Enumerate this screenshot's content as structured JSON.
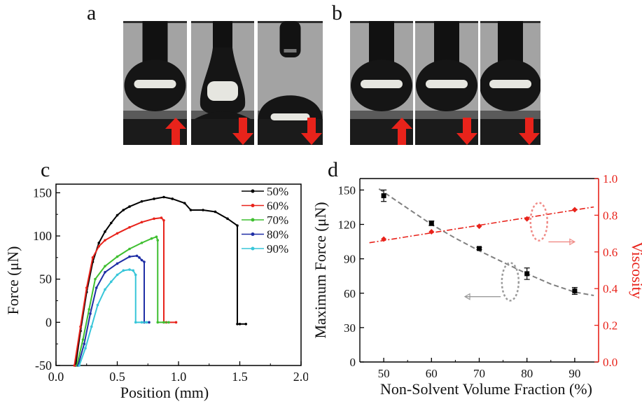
{
  "panels": {
    "a": "a",
    "b": "b",
    "c": "c",
    "d": "d"
  },
  "colors": {
    "arrow": "#e8231b",
    "s50": "#000000",
    "s60": "#e8231b",
    "s70": "#3fbf30",
    "s80": "#1f2ea5",
    "s90": "#38c6d9",
    "force_fit": "#808080",
    "viscosity": "#e8231b"
  },
  "photos": {
    "a": [
      {
        "state": "approach",
        "arrow": "up"
      },
      {
        "state": "stretched-neck",
        "arrow": "down"
      },
      {
        "state": "separated",
        "arrow": "down"
      }
    ],
    "b": [
      {
        "state": "approach",
        "arrow": "up"
      },
      {
        "state": "approach",
        "arrow": "down"
      },
      {
        "state": "approach",
        "arrow": "down"
      }
    ]
  },
  "chart_data": [
    {
      "id": "c",
      "type": "line",
      "xlabel": "Position (mm)",
      "ylabel": "Force (μN)",
      "xlim": [
        0.0,
        2.0
      ],
      "ylim": [
        -50,
        160
      ],
      "xticks": [
        "0.0",
        "0.5",
        "1.0",
        "1.5",
        "2.0"
      ],
      "yticks": [
        "-50",
        "0",
        "50",
        "100",
        "150"
      ],
      "legend_position": "top-right",
      "series": [
        {
          "name": "50%",
          "color": "#000000",
          "marker": "dash-dot",
          "x": [
            0.16,
            0.2,
            0.25,
            0.3,
            0.35,
            0.4,
            0.45,
            0.5,
            0.55,
            0.6,
            0.7,
            0.8,
            0.88,
            0.95,
            1.05,
            1.1,
            1.2,
            1.3,
            1.4,
            1.48,
            1.48,
            1.5,
            1.55
          ],
          "y": [
            -50,
            -10,
            35,
            70,
            92,
            105,
            115,
            124,
            130,
            134,
            140,
            143,
            145,
            143,
            138,
            130,
            130,
            128,
            120,
            112,
            -2,
            -2,
            -2
          ]
        },
        {
          "name": "60%",
          "color": "#e8231b",
          "marker": "triangle-down",
          "x": [
            0.15,
            0.2,
            0.25,
            0.3,
            0.35,
            0.4,
            0.5,
            0.6,
            0.7,
            0.8,
            0.86,
            0.88,
            0.88,
            0.9,
            0.98
          ],
          "y": [
            -50,
            -5,
            40,
            75,
            88,
            95,
            103,
            110,
            116,
            120,
            121,
            118,
            0,
            0,
            0
          ]
        },
        {
          "name": "70%",
          "color": "#3fbf30",
          "marker": "triangle-up",
          "x": [
            0.17,
            0.22,
            0.27,
            0.32,
            0.4,
            0.5,
            0.6,
            0.7,
            0.78,
            0.82,
            0.83,
            0.83,
            0.88,
            0.92
          ],
          "y": [
            -50,
            -20,
            15,
            50,
            65,
            76,
            85,
            92,
            97,
            99,
            95,
            0,
            0,
            0
          ]
        },
        {
          "name": "80%",
          "color": "#1f2ea5",
          "marker": "triangle-right",
          "x": [
            0.18,
            0.23,
            0.28,
            0.33,
            0.4,
            0.5,
            0.6,
            0.66,
            0.68,
            0.7,
            0.72,
            0.72,
            0.76
          ],
          "y": [
            -50,
            -25,
            10,
            40,
            58,
            68,
            76,
            77,
            75,
            72,
            70,
            0,
            0
          ]
        },
        {
          "name": "90%",
          "color": "#38c6d9",
          "marker": "triangle-left",
          "x": [
            0.19,
            0.24,
            0.29,
            0.34,
            0.4,
            0.45,
            0.5,
            0.55,
            0.6,
            0.63,
            0.65,
            0.65,
            0.7,
            0.74
          ],
          "y": [
            -50,
            -30,
            -5,
            20,
            38,
            47,
            55,
            60,
            61,
            60,
            55,
            0,
            0,
            0
          ]
        }
      ]
    },
    {
      "id": "d",
      "type": "scatter",
      "xlabel": "Non-Solvent Volume Fraction (%)",
      "ylabel": "Maximum Force (μN)",
      "ylabel_right": "Viscosity",
      "xlim": [
        45,
        95
      ],
      "ylim": [
        0,
        160
      ],
      "ylim_right": [
        0.0,
        1.0
      ],
      "xticks": [
        "50",
        "60",
        "70",
        "80",
        "90"
      ],
      "yticks": [
        "0",
        "30",
        "60",
        "90",
        "120",
        "150"
      ],
      "yticks_right": [
        "0.0",
        "0.2",
        "0.4",
        "0.6",
        "0.8",
        "1.0"
      ],
      "series": [
        {
          "name": "Maximum Force",
          "axis": "left",
          "color": "#000000",
          "x": [
            50,
            60,
            70,
            80,
            90
          ],
          "y": [
            145,
            121,
            99,
            77,
            62
          ],
          "error": [
            5,
            2,
            1,
            5,
            3
          ],
          "fit_x": [
            49,
            55,
            60,
            65,
            70,
            75,
            80,
            85,
            90,
            94
          ],
          "fit_y": [
            151,
            134,
            120,
            108,
            97,
            87,
            77,
            68,
            61,
            58
          ]
        },
        {
          "name": "Viscosity",
          "axis": "right",
          "color": "#e8231b",
          "x": [
            50,
            60,
            70,
            80,
            90
          ],
          "y": [
            0.67,
            0.71,
            0.74,
            0.78,
            0.83
          ],
          "fit_x": [
            47,
            94
          ],
          "fit_y": [
            0.65,
            0.845
          ]
        }
      ]
    }
  ]
}
